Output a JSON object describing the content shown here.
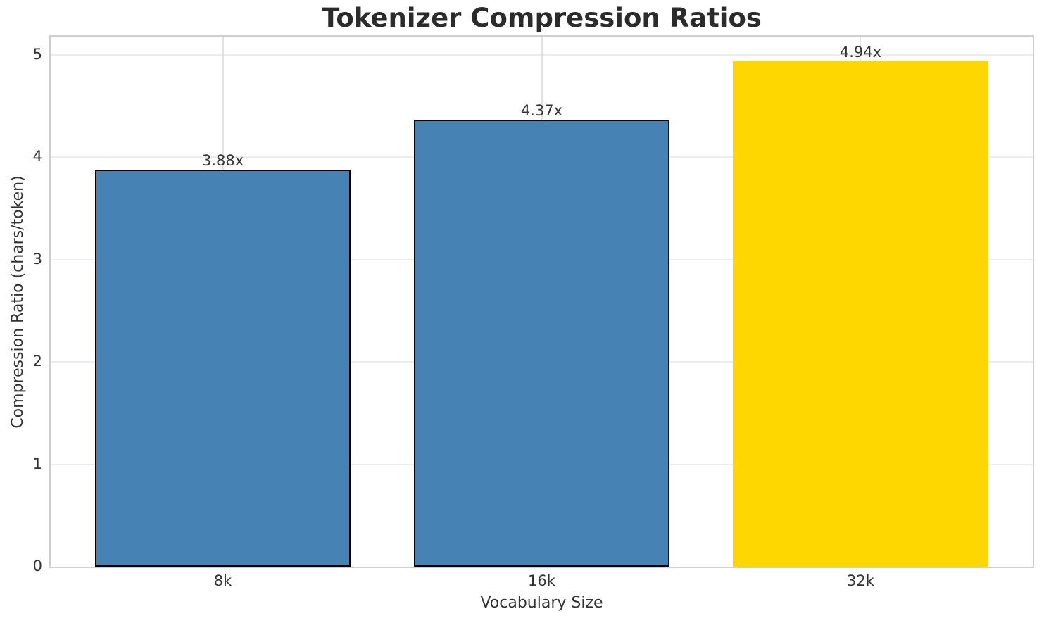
{
  "chart_data": {
    "type": "bar",
    "title": "Tokenizer Compression Ratios",
    "xlabel": "Vocabulary Size",
    "ylabel": "Compression Ratio (chars/token)",
    "categories": [
      "8k",
      "16k",
      "32k"
    ],
    "values": [
      3.88,
      4.37,
      4.94
    ],
    "bar_labels": [
      "3.88x",
      "4.37x",
      "4.94x"
    ],
    "bar_colors": [
      "#4682B4",
      "#4682B4",
      "#FFD700"
    ],
    "bar_edge_colors": [
      "#000000",
      "#000000",
      "none"
    ],
    "yticks": [
      "0",
      "1",
      "2",
      "3",
      "4",
      "5"
    ],
    "ytick_values": [
      0,
      1,
      2,
      3,
      4,
      5
    ],
    "ylim": [
      0,
      5.179
    ],
    "grid": true,
    "legend_position": "none",
    "highlight_color": "#FFD700",
    "base_color": "#4682B4"
  }
}
